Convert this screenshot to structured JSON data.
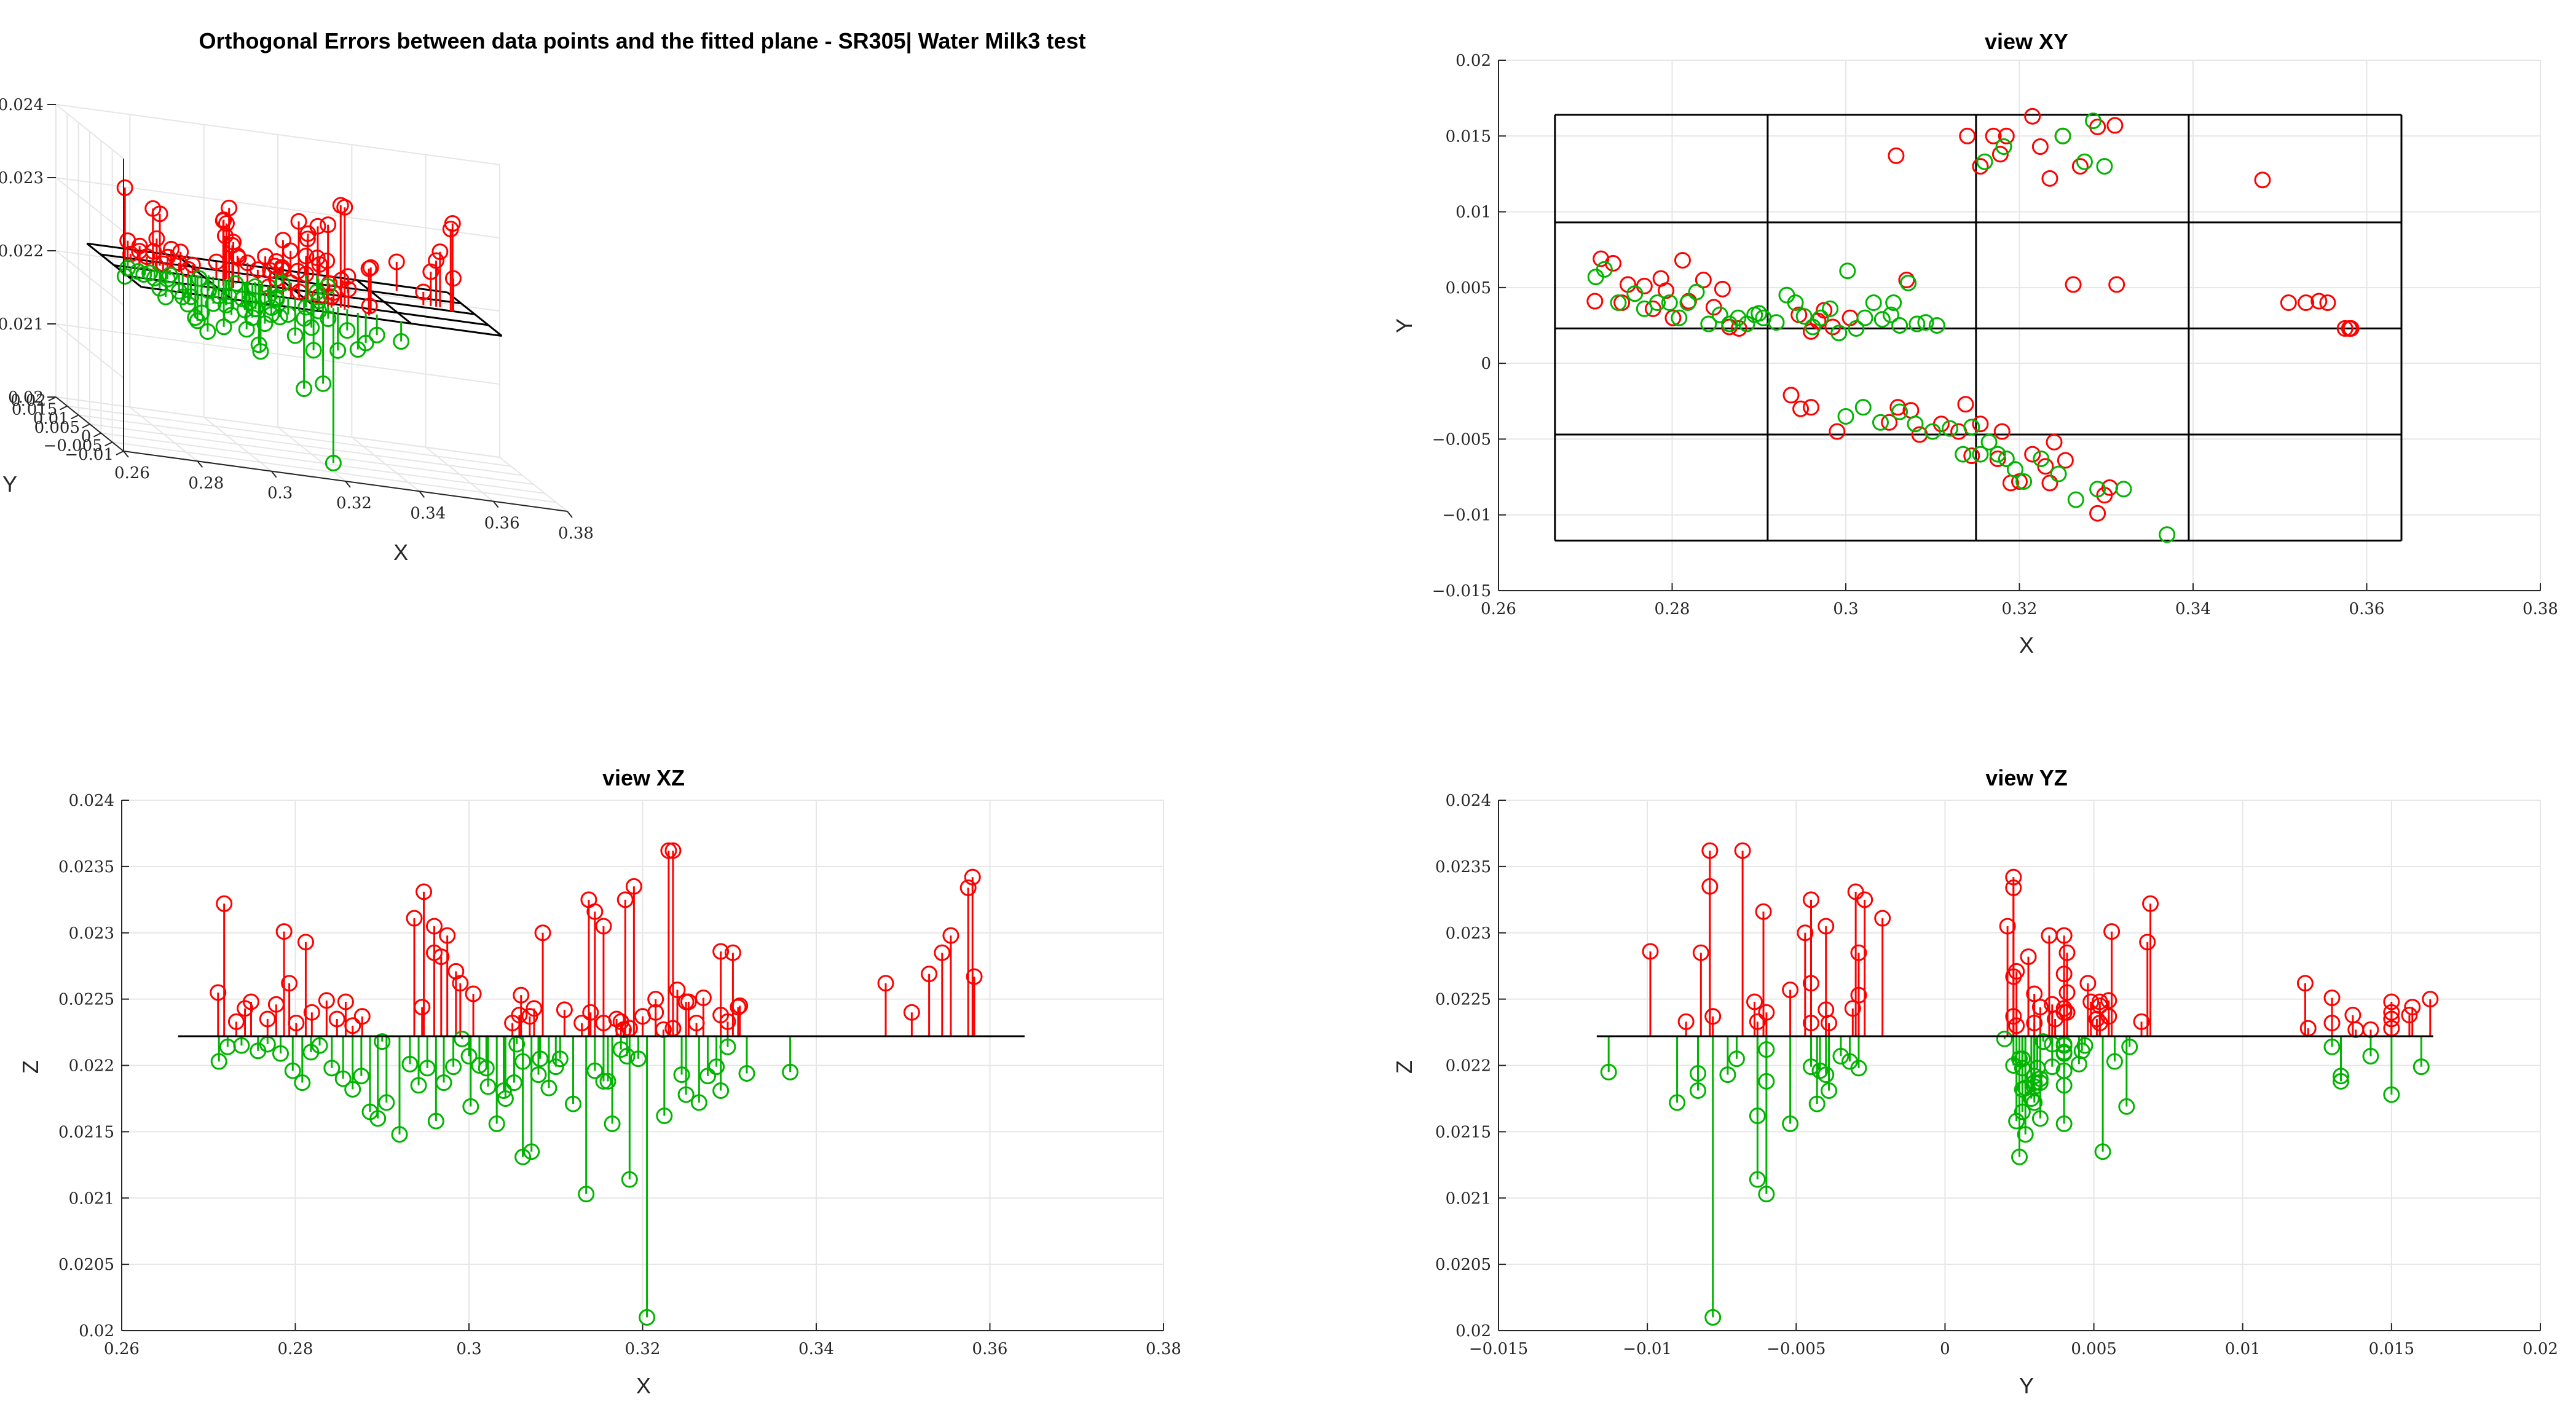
{
  "chart_data": [
    {
      "id": "view3d",
      "type": "scatter",
      "title": "Orthogonal Errors between data points and the fitted plane - SR305| Water Milk3 test",
      "xlabel": "X",
      "ylabel": "Y",
      "zlabel": "Z",
      "xlim": [
        0.26,
        0.38
      ],
      "ylim": [
        -0.015,
        0.02
      ],
      "zlim": [
        0.02,
        0.024
      ],
      "xticks": [
        "0.26",
        "0.28",
        "0.3",
        "0.32",
        "0.34",
        "0.36",
        "0.38"
      ],
      "yticks": [
        "0.02",
        "0.015",
        "0.01",
        "0.005",
        "0",
        "−0.005",
        "−0.01"
      ],
      "zticks": [
        "0.02",
        "0.021",
        "0.022",
        "0.023",
        "0.024"
      ],
      "colors": {
        "above": "#ff0000",
        "below": "#00b400",
        "plane": "#000000"
      }
    },
    {
      "id": "viewXY",
      "type": "scatter",
      "title": "view XY",
      "xlabel": "X",
      "ylabel": "Y",
      "xlim": [
        0.26,
        0.38
      ],
      "ylim": [
        -0.015,
        0.02
      ],
      "xticks": [
        "0.26",
        "0.28",
        "0.3",
        "0.32",
        "0.34",
        "0.36",
        "0.38"
      ],
      "yticks": [
        "−0.015",
        "−0.01",
        "−0.005",
        "0",
        "0.005",
        "0.01",
        "0.015",
        "0.02"
      ],
      "plane_x": [
        0.2665,
        0.291,
        0.315,
        0.3395,
        0.364
      ],
      "plane_y": [
        -0.0117,
        -0.0047,
        0.0023,
        0.0093,
        0.0164
      ],
      "colors": {
        "above": "#ff0000",
        "below": "#00b400",
        "plane": "#000000"
      }
    },
    {
      "id": "viewXZ",
      "type": "scatter",
      "title": "view XZ",
      "xlabel": "X",
      "ylabel": "Z",
      "xlim": [
        0.26,
        0.38
      ],
      "ylim": [
        0.02,
        0.024
      ],
      "xticks": [
        "0.26",
        "0.28",
        "0.3",
        "0.32",
        "0.34",
        "0.36",
        "0.38"
      ],
      "yticks": [
        "0.02",
        "0.0205",
        "0.021",
        "0.0215",
        "0.022",
        "0.0225",
        "0.023",
        "0.0235",
        "0.024"
      ],
      "plane_z": 0.02222,
      "plane_range": [
        0.2665,
        0.364
      ],
      "colors": {
        "above": "#ff0000",
        "below": "#00b400",
        "plane": "#000000"
      }
    },
    {
      "id": "viewYZ",
      "type": "scatter",
      "title": "view YZ",
      "xlabel": "Y",
      "ylabel": "Z",
      "xlim": [
        -0.015,
        0.02
      ],
      "ylim": [
        0.02,
        0.024
      ],
      "xticks": [
        "−0.015",
        "−0.01",
        "−0.005",
        "0",
        "0.005",
        "0.01",
        "0.015",
        "0.02"
      ],
      "yticks": [
        "0.02",
        "0.0205",
        "0.021",
        "0.0215",
        "0.022",
        "0.0225",
        "0.023",
        "0.0235",
        "0.024"
      ],
      "plane_z": 0.02222,
      "plane_range": [
        -0.0117,
        0.0164
      ],
      "colors": {
        "above": "#ff0000",
        "below": "#00b400",
        "plane": "#000000"
      }
    }
  ],
  "points": [
    [
      0.2711,
      0.0041,
      0.02255
    ],
    [
      0.2718,
      0.0069,
      0.02322
    ],
    [
      0.2732,
      0.0066,
      0.02233
    ],
    [
      0.2742,
      0.004,
      0.02243
    ],
    [
      0.2749,
      0.0052,
      0.02248
    ],
    [
      0.2768,
      0.0051,
      0.02235
    ],
    [
      0.2778,
      0.0036,
      0.02246
    ],
    [
      0.2787,
      0.0056,
      0.02301
    ],
    [
      0.2793,
      0.0048,
      0.02262
    ],
    [
      0.2801,
      0.003,
      0.02232
    ],
    [
      0.2812,
      0.0068,
      0.02293
    ],
    [
      0.2819,
      0.0041,
      0.0224
    ],
    [
      0.2836,
      0.0055,
      0.02249
    ],
    [
      0.2848,
      0.0037,
      0.02235
    ],
    [
      0.2858,
      0.0049,
      0.02248
    ],
    [
      0.2866,
      0.0024,
      0.0223
    ],
    [
      0.2877,
      0.0023,
      0.02237
    ],
    [
      0.2946,
      0.0032,
      0.02244
    ],
    [
      0.296,
      0.0021,
      0.02305
    ],
    [
      0.2968,
      0.0028,
      0.02282
    ],
    [
      0.2975,
      0.0035,
      0.02298
    ],
    [
      0.2985,
      0.0024,
      0.02271
    ],
    [
      0.3005,
      0.003,
      0.02254
    ],
    [
      0.2937,
      -0.0021,
      0.02311
    ],
    [
      0.2948,
      -0.003,
      0.02331
    ],
    [
      0.296,
      -0.0029,
      0.02285
    ],
    [
      0.299,
      -0.0045,
      0.02262
    ],
    [
      0.306,
      -0.0029,
      0.02253
    ],
    [
      0.3075,
      -0.0031,
      0.02243
    ],
    [
      0.305,
      -0.0039,
      0.02232
    ],
    [
      0.3085,
      -0.0047,
      0.023
    ],
    [
      0.311,
      -0.004,
      0.02242
    ],
    [
      0.313,
      -0.0045,
      0.02232
    ],
    [
      0.3138,
      -0.0027,
      0.02325
    ],
    [
      0.3145,
      -0.0061,
      0.02316
    ],
    [
      0.3155,
      -0.004,
      0.02305
    ],
    [
      0.3175,
      -0.0063,
      0.02233
    ],
    [
      0.318,
      -0.0045,
      0.02325
    ],
    [
      0.319,
      -0.0079,
      0.02335
    ],
    [
      0.32,
      -0.0078,
      0.02237
    ],
    [
      0.3215,
      -0.006,
      0.0224
    ],
    [
      0.323,
      -0.0068,
      0.02362
    ],
    [
      0.3235,
      -0.0079,
      0.02362
    ],
    [
      0.324,
      -0.0052,
      0.02257
    ],
    [
      0.3253,
      -0.0064,
      0.02248
    ],
    [
      0.3262,
      0.0052,
      0.02232
    ],
    [
      0.329,
      -0.0099,
      0.02286
    ],
    [
      0.3298,
      -0.0087,
      0.02233
    ],
    [
      0.3304,
      -0.0082,
      0.02285
    ],
    [
      0.3312,
      0.0052,
      0.02245
    ],
    [
      0.3058,
      0.0137,
      0.02238
    ],
    [
      0.314,
      0.015,
      0.0224
    ],
    [
      0.3155,
      0.013,
      0.02232
    ],
    [
      0.317,
      0.015,
      0.02235
    ],
    [
      0.3178,
      0.0138,
      0.02227
    ],
    [
      0.3185,
      0.015,
      0.02228
    ],
    [
      0.3215,
      0.0163,
      0.0225
    ],
    [
      0.3224,
      0.0143,
      0.02227
    ],
    [
      0.3235,
      0.0122,
      0.02228
    ],
    [
      0.325,
      0.015,
      0.02248
    ],
    [
      0.327,
      0.013,
      0.02251
    ],
    [
      0.329,
      0.0156,
      0.02238
    ],
    [
      0.331,
      0.0157,
      0.02244
    ],
    [
      0.348,
      0.0121,
      0.02262
    ],
    [
      0.351,
      0.004,
      0.0224
    ],
    [
      0.353,
      0.004,
      0.02269
    ],
    [
      0.3545,
      0.0041,
      0.02285
    ],
    [
      0.3555,
      0.004,
      0.02298
    ],
    [
      0.3575,
      0.0023,
      0.02334
    ],
    [
      0.358,
      0.0023,
      0.02342
    ],
    [
      0.3582,
      0.0023,
      0.02267
    ],
    [
      0.307,
      0.0055,
      0.02237
    ],
    [
      0.2712,
      0.0057,
      0.02203
    ],
    [
      0.2722,
      0.0062,
      0.02214
    ],
    [
      0.2738,
      0.004,
      0.02215
    ],
    [
      0.2757,
      0.0046,
      0.02211
    ],
    [
      0.2768,
      0.0036,
      0.02216
    ],
    [
      0.2783,
      0.004,
      0.02209
    ],
    [
      0.2797,
      0.004,
      0.02196
    ],
    [
      0.2808,
      0.003,
      0.02187
    ],
    [
      0.2818,
      0.004,
      0.0221
    ],
    [
      0.2828,
      0.0047,
      0.02215
    ],
    [
      0.2842,
      0.0026,
      0.02198
    ],
    [
      0.2855,
      0.0032,
      0.0219
    ],
    [
      0.2866,
      0.0026,
      0.02182
    ],
    [
      0.2876,
      0.003,
      0.02192
    ],
    [
      0.2886,
      0.0026,
      0.02165
    ],
    [
      0.2895,
      0.0032,
      0.0216
    ],
    [
      0.2905,
      0.003,
      0.02172
    ],
    [
      0.292,
      0.0027,
      0.02148
    ],
    [
      0.2932,
      0.0045,
      0.02201
    ],
    [
      0.2942,
      0.004,
      0.02185
    ],
    [
      0.2952,
      0.0031,
      0.02198
    ],
    [
      0.2962,
      0.0024,
      0.02158
    ],
    [
      0.2971,
      0.003,
      0.02187
    ],
    [
      0.2982,
      0.0036,
      0.02199
    ],
    [
      0.2992,
      0.002,
      0.0222
    ],
    [
      0.3002,
      0.0061,
      0.02169
    ],
    [
      0.3012,
      0.0023,
      0.022
    ],
    [
      0.3022,
      0.003,
      0.02184
    ],
    [
      0.3032,
      0.004,
      0.02156
    ],
    [
      0.3042,
      0.0029,
      0.02175
    ],
    [
      0.3052,
      0.0032,
      0.02187
    ],
    [
      0.3062,
      0.0025,
      0.02131
    ],
    [
      0.3072,
      0.0053,
      0.02135
    ],
    [
      0.3082,
      0.0026,
      0.02205
    ],
    [
      0.3092,
      0.0027,
      0.02183
    ],
    [
      0.3,
      -0.0035,
      0.02207
    ],
    [
      0.302,
      -0.0029,
      0.02198
    ],
    [
      0.304,
      -0.0039,
      0.02181
    ],
    [
      0.3062,
      -0.0032,
      0.02203
    ],
    [
      0.308,
      -0.004,
      0.02193
    ],
    [
      0.31,
      -0.0045,
      0.02199
    ],
    [
      0.312,
      -0.0043,
      0.02171
    ],
    [
      0.3135,
      -0.006,
      0.02103
    ],
    [
      0.3145,
      -0.0042,
      0.02196
    ],
    [
      0.3155,
      -0.006,
      0.02188
    ],
    [
      0.3165,
      -0.0052,
      0.02156
    ],
    [
      0.3175,
      -0.006,
      0.02212
    ],
    [
      0.3185,
      -0.0063,
      0.02114
    ],
    [
      0.3195,
      -0.007,
      0.02205
    ],
    [
      0.3205,
      -0.0078,
      0.0201
    ],
    [
      0.3225,
      -0.0063,
      0.02162
    ],
    [
      0.3245,
      -0.0073,
      0.02193
    ],
    [
      0.3265,
      -0.009,
      0.02172
    ],
    [
      0.329,
      -0.0083,
      0.02181
    ],
    [
      0.332,
      -0.0083,
      0.02194
    ],
    [
      0.337,
      -0.0113,
      0.02195
    ],
    [
      0.316,
      0.0133,
      0.02188
    ],
    [
      0.3182,
      0.0143,
      0.02207
    ],
    [
      0.325,
      0.015,
      0.02178
    ],
    [
      0.3275,
      0.0133,
      0.02192
    ],
    [
      0.3285,
      0.016,
      0.02199
    ],
    [
      0.3298,
      0.013,
      0.02214
    ],
    [
      0.3055,
      0.004,
      0.02216
    ],
    [
      0.3105,
      0.0025,
      0.02205
    ],
    [
      0.29,
      0.0033,
      0.02218
    ]
  ]
}
